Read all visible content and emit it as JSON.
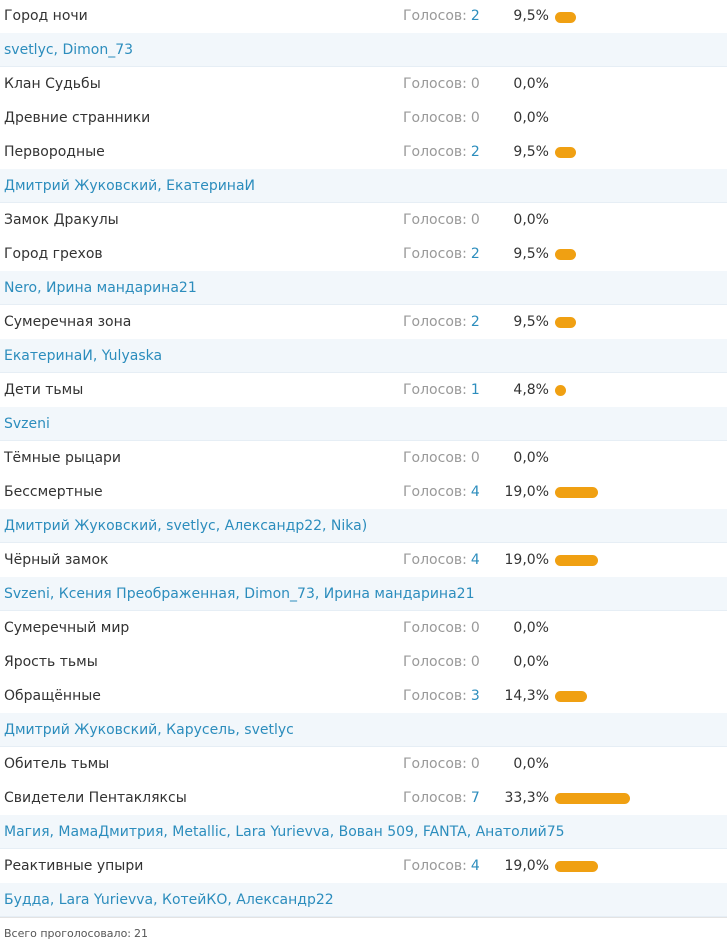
{
  "votes_label": "Голосов:",
  "bar_color": "#f0a012",
  "link_color": "#2c8dbd",
  "options": [
    {
      "title": "Город ночи",
      "votes": 2,
      "percent": "9,5%",
      "share": 9.5,
      "voters": "svetlyc, Dimon_73"
    },
    {
      "title": "Клан Судьбы",
      "votes": 0,
      "percent": "0,0%",
      "share": 0,
      "voters": ""
    },
    {
      "title": "Древние странники",
      "votes": 0,
      "percent": "0,0%",
      "share": 0,
      "voters": ""
    },
    {
      "title": "Первородные",
      "votes": 2,
      "percent": "9,5%",
      "share": 9.5,
      "voters": "Дмитрий Жуковский, ЕкатеринаИ"
    },
    {
      "title": "Замок Дракулы",
      "votes": 0,
      "percent": "0,0%",
      "share": 0,
      "voters": ""
    },
    {
      "title": "Город грехов",
      "votes": 2,
      "percent": "9,5%",
      "share": 9.5,
      "voters": "Nero, Ирина мандарина21"
    },
    {
      "title": "Сумеречная зона",
      "votes": 2,
      "percent": "9,5%",
      "share": 9.5,
      "voters": "ЕкатеринаИ, Yulyaska"
    },
    {
      "title": "Дети тьмы",
      "votes": 1,
      "percent": "4,8%",
      "share": 4.8,
      "voters": "Svzeni"
    },
    {
      "title": "Тёмные рыцари",
      "votes": 0,
      "percent": "0,0%",
      "share": 0,
      "voters": ""
    },
    {
      "title": "Бессмертные",
      "votes": 4,
      "percent": "19,0%",
      "share": 19.0,
      "voters": "Дмитрий Жуковский, svetlyc, Александр22, Nika)"
    },
    {
      "title": "Чёрный замок",
      "votes": 4,
      "percent": "19,0%",
      "share": 19.0,
      "voters": "Svzeni, Ксения Преображенная, Dimon_73, Ирина мандарина21"
    },
    {
      "title": "Сумеречный мир",
      "votes": 0,
      "percent": "0,0%",
      "share": 0,
      "voters": ""
    },
    {
      "title": "Ярость тьмы",
      "votes": 0,
      "percent": "0,0%",
      "share": 0,
      "voters": ""
    },
    {
      "title": "Обращённые",
      "votes": 3,
      "percent": "14,3%",
      "share": 14.3,
      "voters": "Дмитрий Жуковский, Карусель, svetlyc"
    },
    {
      "title": "Обитель тьмы",
      "votes": 0,
      "percent": "0,0%",
      "share": 0,
      "voters": ""
    },
    {
      "title": "Свидетели Пентакляксы",
      "votes": 7,
      "percent": "33,3%",
      "share": 33.3,
      "voters": "Магия, МамаДмитрия, Metallic, Lara Yurievva, Вован 509, FANTA, Анатолий75"
    },
    {
      "title": "Реактивные упыри",
      "votes": 4,
      "percent": "19,0%",
      "share": 19.0,
      "voters": "Будда, Lara Yurievva, КотейКО, Александр22"
    }
  ],
  "total": {
    "label": "Всего проголосовало:",
    "count": "21"
  }
}
